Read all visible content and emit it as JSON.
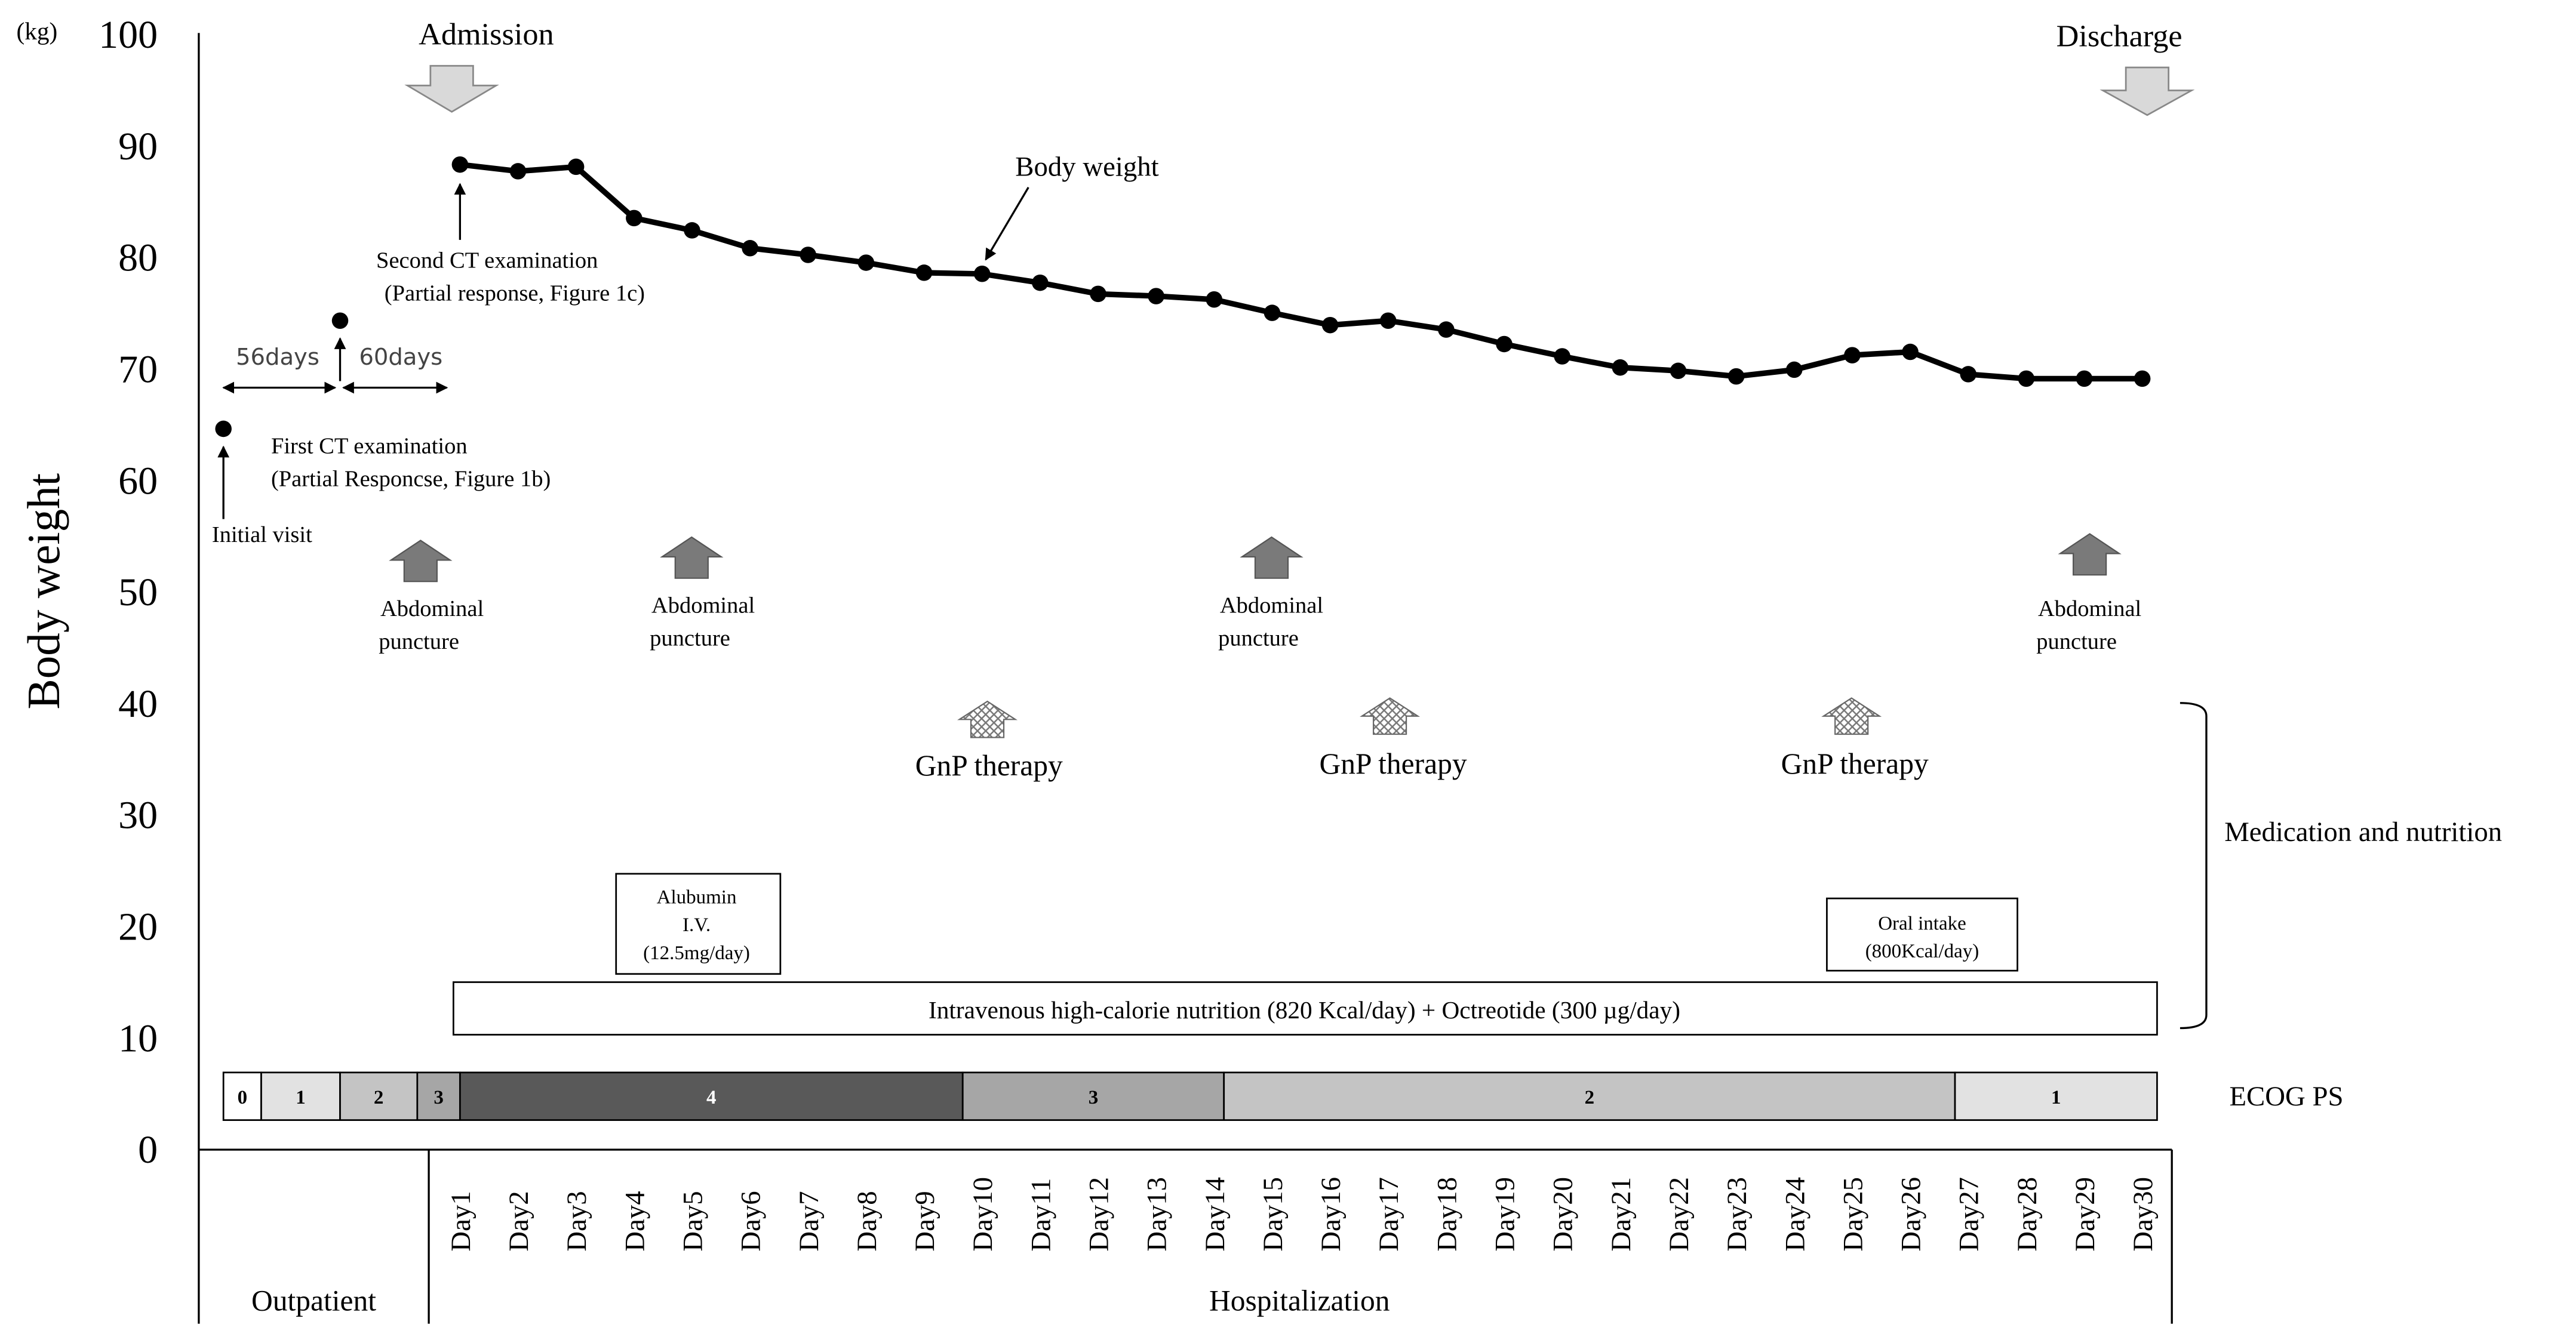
{
  "chart_data": {
    "type": "line",
    "unit_label": "(kg)",
    "ylabel": "Body weight",
    "ylim": [
      0,
      100
    ],
    "yticks": [
      0,
      10,
      20,
      30,
      40,
      50,
      60,
      70,
      80,
      90,
      100
    ],
    "categories": [
      "Day1",
      "Day2",
      "Day3",
      "Day4",
      "Day5",
      "Day6",
      "Day7",
      "Day8",
      "Day9",
      "Day10",
      "Day11",
      "Day12",
      "Day13",
      "Day14",
      "Day15",
      "Day16",
      "Day17",
      "Day18",
      "Day19",
      "Day20",
      "Day21",
      "Day22",
      "Day23",
      "Day24",
      "Day25",
      "Day26",
      "Day27",
      "Day28",
      "Day29",
      "Day30"
    ],
    "series": [
      {
        "name": "Body weight",
        "values": [
          88.2,
          87.6,
          88.0,
          83.4,
          82.3,
          80.7,
          80.1,
          79.4,
          78.5,
          78.4,
          77.6,
          76.6,
          76.4,
          76.1,
          74.9,
          73.8,
          74.2,
          73.4,
          72.1,
          71.0,
          70.0,
          69.7,
          69.2,
          69.8,
          71.1,
          71.4,
          69.4,
          69.0,
          69.0,
          69.0
        ]
      }
    ],
    "outpatient_points": [
      {
        "label": "Initial visit",
        "value": 64.5
      },
      {
        "label": "First CT examination",
        "value": 74.2
      }
    ],
    "series_label": "Body weight",
    "intervals": [
      "56days",
      "60days"
    ],
    "events": {
      "admission": "Admission",
      "discharge": "Discharge",
      "initial_visit": "Initial visit",
      "first_ct": [
        "First CT examination",
        "(Partial Responcse, Figure 1b)"
      ],
      "second_ct": [
        "Second CT examination",
        "(Partial response, Figure 1c)"
      ]
    },
    "abdominal_puncture": {
      "line1": "Abdominal",
      "line2": "puncture"
    },
    "gnp_label": "GnP therapy",
    "albumin": [
      "Alubumin",
      "I.V.",
      "(12.5mg/day)"
    ],
    "oral_intake": [
      "Oral intake",
      "(800Kcal/day)"
    ],
    "iv_nutrition": "Intravenous high-calorie nutrition (820 Kcal/day) + Octreotide (300 µg/day)",
    "medication_label": "Medication and nutrition",
    "ecog_label": "ECOG PS",
    "ecog_segments": [
      {
        "label": "0",
        "color": "#ffffff"
      },
      {
        "label": "1",
        "color": "#e2e2e2"
      },
      {
        "label": "2",
        "color": "#c4c4c4"
      },
      {
        "label": "3",
        "color": "#a6a6a6"
      },
      {
        "label": "4",
        "color": "#595959"
      },
      {
        "label": "3",
        "color": "#a6a6a6"
      },
      {
        "label": "2",
        "color": "#c4c4c4"
      },
      {
        "label": "1",
        "color": "#e2e2e2"
      }
    ],
    "period_labels": {
      "outpatient": "Outpatient",
      "hospitalization": "Hospitalization"
    },
    "colors": {
      "line": "#000000",
      "puncture_arrow": "#7a7a7a",
      "event_arrow": "#d9d9d9",
      "ecog_dark_text": "#ffffff"
    }
  }
}
